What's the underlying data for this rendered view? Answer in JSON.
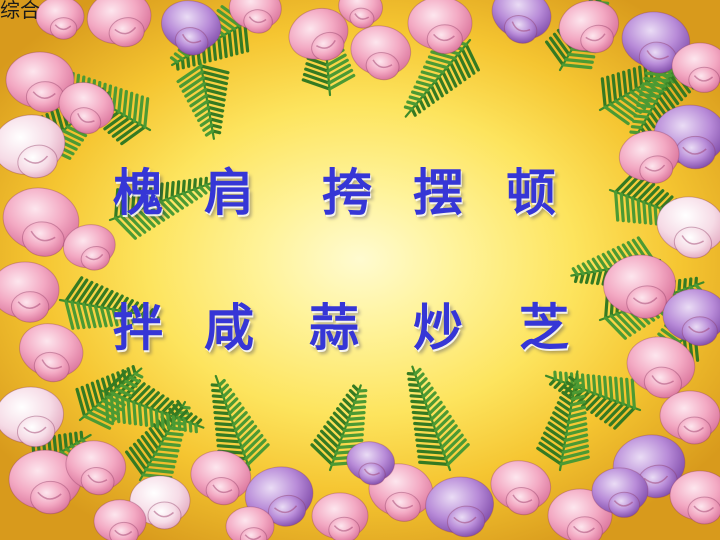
{
  "header": {
    "corner_text": "综合"
  },
  "words": {
    "row1": [
      "槐",
      "肩",
      "挎",
      "摆",
      "顿"
    ],
    "row2": [
      "拌",
      "咸",
      "蒜",
      "炒",
      "芝"
    ]
  },
  "colors": {
    "text": "#3636d6",
    "background_center": "#fff39a",
    "background_edge": "#d89a1c",
    "fern": "#3d8a2a",
    "flower_pink": "#f3a9c3",
    "flower_purple": "#b07ad0"
  }
}
